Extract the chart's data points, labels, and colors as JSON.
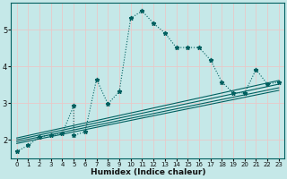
{
  "xlabel": "Humidex (Indice chaleur)",
  "background_color": "#c5e8e8",
  "grid_color": "#e8c8c8",
  "line_color": "#006060",
  "xlim": [
    -0.5,
    23.5
  ],
  "ylim": [
    1.5,
    5.75
  ],
  "x_ticks": [
    0,
    1,
    2,
    3,
    4,
    5,
    6,
    7,
    8,
    9,
    10,
    11,
    12,
    13,
    14,
    15,
    16,
    17,
    18,
    19,
    20,
    21,
    22,
    23
  ],
  "y_ticks": [
    2,
    3,
    4,
    5
  ],
  "main_x": [
    0,
    1,
    2,
    3,
    4,
    5,
    5,
    6,
    7,
    8,
    9,
    10,
    11,
    12,
    13,
    14,
    15,
    16,
    17,
    18,
    19,
    20,
    21,
    22,
    23
  ],
  "main_y": [
    1.68,
    1.85,
    2.08,
    2.13,
    2.18,
    2.93,
    2.12,
    2.22,
    3.65,
    2.98,
    3.32,
    5.32,
    5.52,
    5.18,
    4.92,
    4.52,
    4.52,
    4.52,
    4.18,
    3.58,
    3.28,
    3.28,
    3.92,
    3.52,
    3.58
  ],
  "linear_lines": [
    {
      "x": [
        0,
        23
      ],
      "y": [
        2.05,
        3.62
      ]
    },
    {
      "x": [
        0,
        23
      ],
      "y": [
        2.0,
        3.52
      ]
    },
    {
      "x": [
        0,
        23
      ],
      "y": [
        1.95,
        3.42
      ]
    },
    {
      "x": [
        0,
        23
      ],
      "y": [
        1.9,
        3.35
      ]
    }
  ]
}
